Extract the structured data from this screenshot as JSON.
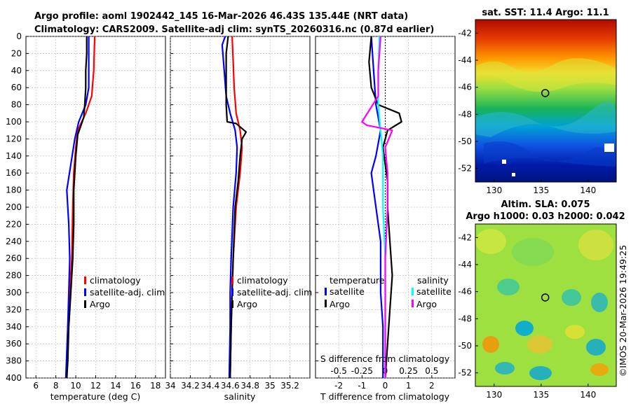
{
  "header": {
    "line1": "Argo profile: aoml 1902442_145 16-Mar-2026 46.43S 135.44E (NRT data)",
    "line2": "Climatology: CARS2009. Satellite-adj clim: synTS_20260316.nc (0.87d earlier)"
  },
  "colors": {
    "climatology": "#ff0000",
    "satellite": "#0000ff",
    "argo": "#000000",
    "sat_salinity": "#00ffff",
    "argo_salinity": "#ff00ff"
  },
  "chart_data": [
    {
      "type": "line",
      "id": "temperature",
      "xlabel": "temperature (deg C)",
      "xlim": [
        5,
        19
      ],
      "xticks": [
        6,
        8,
        10,
        12,
        14,
        16,
        18
      ],
      "ylim": [
        400,
        0
      ],
      "yticks": [
        0,
        20,
        40,
        60,
        80,
        100,
        120,
        140,
        160,
        180,
        200,
        220,
        240,
        260,
        280,
        300,
        320,
        340,
        360,
        380,
        400
      ],
      "legend": {
        "position": "bottom-right",
        "entries": [
          "climatology",
          "satellite-adj. clim",
          "Argo"
        ]
      },
      "series": [
        {
          "name": "climatology",
          "color": "#ff0000",
          "points": [
            [
              11.9,
              0
            ],
            [
              11.8,
              40
            ],
            [
              11.6,
              70
            ],
            [
              11.0,
              90
            ],
            [
              10.2,
              110
            ],
            [
              10.0,
              130
            ],
            [
              9.8,
              160
            ],
            [
              9.7,
              200
            ],
            [
              9.6,
              260
            ],
            [
              9.4,
              300
            ],
            [
              9.2,
              340
            ],
            [
              9.1,
              400
            ]
          ]
        },
        {
          "name": "satellite-adj. clim",
          "color": "#0000ff",
          "points": [
            [
              11.3,
              0
            ],
            [
              11.3,
              60
            ],
            [
              11.0,
              80
            ],
            [
              10.3,
              100
            ],
            [
              9.9,
              120
            ],
            [
              9.5,
              150
            ],
            [
              9.1,
              180
            ],
            [
              9.3,
              220
            ],
            [
              9.4,
              260
            ],
            [
              9.3,
              300
            ],
            [
              9.2,
              340
            ],
            [
              9.0,
              400
            ]
          ]
        },
        {
          "name": "Argo",
          "color": "#000000",
          "points": [
            [
              11.1,
              0
            ],
            [
              11.1,
              20
            ],
            [
              11.0,
              40
            ],
            [
              11.0,
              60
            ],
            [
              10.9,
              80
            ],
            [
              10.8,
              95
            ],
            [
              10.5,
              105
            ],
            [
              10.2,
              115
            ],
            [
              10.0,
              140
            ],
            [
              9.8,
              180
            ],
            [
              9.8,
              220
            ],
            [
              9.7,
              260
            ],
            [
              9.5,
              300
            ],
            [
              9.3,
              340
            ],
            [
              9.2,
              380
            ],
            [
              9.1,
              400
            ]
          ]
        }
      ]
    },
    {
      "type": "line",
      "id": "salinity",
      "xlabel": "salinity",
      "xlim": [
        34,
        35.4
      ],
      "xticks": [
        34,
        34.2,
        34.4,
        34.6,
        34.8,
        35,
        35.2
      ],
      "xtick_labels": [
        "34",
        "34.2",
        "34.4",
        "34.6",
        "34.8",
        "35",
        "35.2"
      ],
      "ylim": [
        400,
        0
      ],
      "legend": {
        "position": "bottom-right",
        "entries": [
          "climatology",
          "satellite-adj. clim",
          "Argo"
        ]
      },
      "series": [
        {
          "name": "climatology",
          "color": "#ff0000",
          "points": [
            [
              34.62,
              0
            ],
            [
              34.63,
              30
            ],
            [
              34.64,
              60
            ],
            [
              34.66,
              90
            ],
            [
              34.7,
              110
            ],
            [
              34.72,
              130
            ],
            [
              34.7,
              160
            ],
            [
              34.66,
              200
            ],
            [
              34.63,
              260
            ],
            [
              34.62,
              300
            ],
            [
              34.61,
              340
            ],
            [
              34.6,
              400
            ]
          ]
        },
        {
          "name": "satellite-adj. clim",
          "color": "#0000ff",
          "points": [
            [
              34.55,
              0
            ],
            [
              34.52,
              10
            ],
            [
              34.54,
              40
            ],
            [
              34.56,
              70
            ],
            [
              34.6,
              90
            ],
            [
              34.65,
              110
            ],
            [
              34.67,
              130
            ],
            [
              34.66,
              160
            ],
            [
              34.63,
              200
            ],
            [
              34.61,
              260
            ],
            [
              34.6,
              300
            ],
            [
              34.6,
              340
            ],
            [
              34.59,
              400
            ]
          ]
        },
        {
          "name": "Argo",
          "color": "#000000",
          "points": [
            [
              34.58,
              0
            ],
            [
              34.56,
              20
            ],
            [
              34.56,
              60
            ],
            [
              34.56,
              80
            ],
            [
              34.57,
              100
            ],
            [
              34.66,
              102
            ],
            [
              34.76,
              112
            ],
            [
              34.72,
              120
            ],
            [
              34.7,
              140
            ],
            [
              34.68,
              170
            ],
            [
              34.65,
              200
            ],
            [
              34.63,
              260
            ],
            [
              34.62,
              300
            ],
            [
              34.61,
              340
            ],
            [
              34.6,
              400
            ]
          ]
        }
      ]
    },
    {
      "type": "line",
      "id": "difference",
      "xlabel": "T difference from climatology",
      "xlim": [
        -3,
        3
      ],
      "xticks": [
        -2,
        -1,
        0,
        1,
        2
      ],
      "top_axis_label": "S difference from climatology",
      "top_ticks": [
        "-0.5",
        "-0.25",
        "0",
        "0.25",
        "0.5"
      ],
      "top_tick_values": [
        -0.5,
        -0.25,
        0,
        0.25,
        0.5
      ],
      "s_scale_per_T": 4,
      "ylim": [
        400,
        0
      ],
      "legend": {
        "position": "bottom",
        "entries": [
          "temperature",
          "satellite",
          "Argo",
          "salinity",
          "satellite",
          "Argo"
        ]
      },
      "series": [
        {
          "name": "temperature satellite",
          "color": "#0000ff",
          "points": [
            [
              -0.6,
              0
            ],
            [
              -0.5,
              40
            ],
            [
              -0.4,
              80
            ],
            [
              -0.2,
              110
            ],
            [
              -0.4,
              140
            ],
            [
              -0.6,
              160
            ],
            [
              -0.4,
              200
            ],
            [
              -0.2,
              240
            ],
            [
              -0.2,
              300
            ],
            [
              -0.1,
              340
            ],
            [
              -0.1,
              400
            ]
          ]
        },
        {
          "name": "temperature Argo",
          "color": "#000000",
          "points": [
            [
              -0.6,
              0
            ],
            [
              -0.7,
              30
            ],
            [
              -0.6,
              60
            ],
            [
              -0.3,
              80
            ],
            [
              0.6,
              90
            ],
            [
              0.7,
              100
            ],
            [
              0.1,
              110
            ],
            [
              -0.1,
              130
            ],
            [
              0.1,
              170
            ],
            [
              0.1,
              200
            ],
            [
              0.2,
              240
            ],
            [
              0.3,
              280
            ],
            [
              0.2,
              320
            ],
            [
              0.1,
              360
            ],
            [
              0.0,
              400
            ]
          ]
        },
        {
          "name": "salinity satellite",
          "color": "#00ffff",
          "points": [
            [
              -0.25,
              0
            ],
            [
              -0.3,
              40
            ],
            [
              -0.3,
              80
            ],
            [
              -0.2,
              110
            ],
            [
              -0.1,
              140
            ],
            [
              -0.1,
              200
            ],
            [
              0.0,
              260
            ],
            [
              0.0,
              340
            ],
            [
              0.0,
              400
            ]
          ]
        },
        {
          "name": "salinity Argo",
          "color": "#ff00ff",
          "points": [
            [
              -0.2,
              0
            ],
            [
              -0.3,
              40
            ],
            [
              -0.3,
              70
            ],
            [
              -1.0,
              100
            ],
            [
              -0.8,
              104
            ],
            [
              0.3,
              110
            ],
            [
              0.0,
              130
            ],
            [
              0.1,
              160
            ],
            [
              0.1,
              200
            ],
            [
              0.0,
              260
            ],
            [
              0.0,
              340
            ],
            [
              0.0,
              400
            ]
          ]
        }
      ]
    },
    {
      "type": "heatmap",
      "id": "sst-map",
      "title": "sat. SST: 11.4 Argo: 11.1",
      "xlim": [
        128,
        143
      ],
      "ylim": [
        -53,
        -41
      ],
      "xticks": [
        130,
        135,
        140
      ],
      "yticks": [
        -42,
        -44,
        -46,
        -48,
        -50,
        -52
      ],
      "marker": {
        "lon": 135.44,
        "lat": -46.43
      }
    },
    {
      "type": "heatmap",
      "id": "sla-map",
      "title": "Altim. SLA: 0.075",
      "subtitle": "Argo h1000: 0.03 h2000: 0.042",
      "xlim": [
        128,
        143
      ],
      "ylim": [
        -53,
        -41
      ],
      "xticks": [
        130,
        135,
        140
      ],
      "yticks": [
        -42,
        -44,
        -46,
        -48,
        -50,
        -52
      ],
      "marker": {
        "lon": 135.44,
        "lat": -46.43
      }
    }
  ],
  "watermark": "©IMOS 20-Mar-2026 19:49:25"
}
